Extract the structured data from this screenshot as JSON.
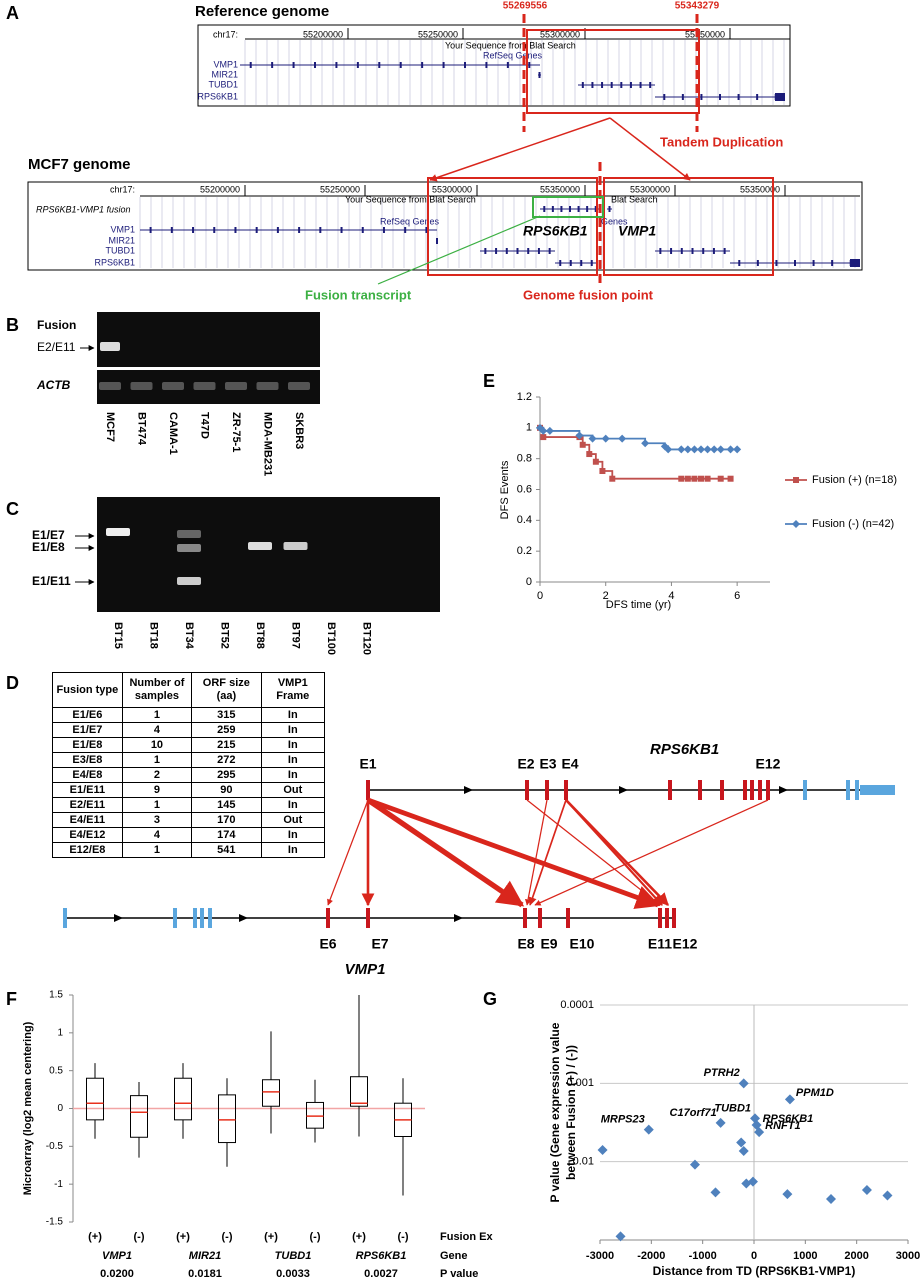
{
  "panel_labels": [
    "A",
    "B",
    "C",
    "D",
    "E",
    "F",
    "G"
  ],
  "genome": {
    "reference_title": "Reference genome",
    "breakpoints": [
      "55269556",
      "55343279"
    ],
    "reference_browser": {
      "chr": "chr17:",
      "ticks": [
        "55200000",
        "55250000",
        "55300000",
        "55350000"
      ],
      "blat": "Your Sequence from Blat Search",
      "refseq": "RefSeq Genes",
      "tracks": [
        "VMP1",
        "MIR21",
        "TUBD1",
        "RPS6KB1"
      ]
    },
    "duplication_label": "Tandem Duplication",
    "mcf7_title": "MCF7 genome",
    "mcf7_browser": {
      "chr": "chr17:",
      "ticks": [
        "55200000",
        "55250000",
        "55300000",
        "55350000",
        "55300000",
        "55350000"
      ],
      "blat": "Your Sequence from Blat Search",
      "blat2": "Blat Search",
      "refseq": "RefSeq Genes",
      "refseq2": "Genes",
      "fusion_track": "RPS6KB1-VMP1 fusion",
      "tracks": [
        "VMP1",
        "MIR21",
        "TUBD1",
        "RPS6KB1"
      ]
    },
    "gene_left": "RPS6KB1",
    "gene_right": "VMP1",
    "fusion_transcript": "Fusion transcript",
    "fusion_point": "Genome fusion point"
  },
  "gel_b": {
    "row_labels": [
      "Fusion",
      "E2/E11",
      "ACTB"
    ],
    "lanes": [
      "MCF7",
      "BT474",
      "CAMA-1",
      "T47D",
      "ZR-75-1",
      "MDA-MB231",
      "SKBR3"
    ]
  },
  "gel_c": {
    "row_labels": [
      "E1/E7",
      "E1/E8",
      "E1/E11"
    ],
    "lanes": [
      "BT15",
      "BT18",
      "BT34",
      "BT52",
      "BT88",
      "BT97",
      "BT100",
      "BT120"
    ]
  },
  "table": {
    "header": [
      "Fusion type",
      "Number of samples",
      "ORF size (aa)",
      "VMP1 Frame"
    ],
    "rows": [
      [
        "E1/E6",
        1,
        315,
        "In"
      ],
      [
        "E1/E7",
        4,
        259,
        "In"
      ],
      [
        "E1/E8",
        10,
        215,
        "In"
      ],
      [
        "E3/E8",
        1,
        272,
        "In"
      ],
      [
        "E4/E8",
        2,
        295,
        "In"
      ],
      [
        "E1/E11",
        9,
        90,
        "Out"
      ],
      [
        "E2/E11",
        1,
        145,
        "In"
      ],
      [
        "E4/E11",
        3,
        170,
        "Out"
      ],
      [
        "E4/E12",
        4,
        174,
        "In"
      ],
      [
        "E12/E8",
        1,
        541,
        "In"
      ]
    ]
  },
  "fusion_diagram": {
    "top_gene": "RPS6KB1",
    "bottom_gene": "VMP1",
    "top_exons": [
      "E1",
      "E2",
      "E3",
      "E4",
      "E12"
    ],
    "bottom_exons": [
      "E6",
      "E7",
      "E8",
      "E9",
      "E10",
      "E11",
      "E12"
    ]
  },
  "chart_data": [
    {
      "type": "line",
      "step": true,
      "xlabel": "DFS time (yr)",
      "ylabel": "DFS Events",
      "xlim": [
        0,
        7
      ],
      "xticks": [
        0,
        2,
        4,
        6
      ],
      "ylim": [
        0,
        1.2
      ],
      "yticks": [
        0,
        0.2,
        0.4,
        0.6,
        0.8,
        1,
        1.2
      ],
      "legend": "right",
      "series": [
        {
          "name": "Fusion (+) (n=18)",
          "color": "#c0504d",
          "marker": "square",
          "x": [
            0,
            0.1,
            1.2,
            1.3,
            1.5,
            1.7,
            1.9,
            2.2,
            4.3,
            4.5,
            4.7,
            4.9,
            5.1,
            5.5,
            5.8
          ],
          "values": [
            1,
            0.94,
            0.94,
            0.89,
            0.83,
            0.78,
            0.72,
            0.67,
            0.67,
            0.67,
            0.67,
            0.67,
            0.67,
            0.67,
            0.67
          ]
        },
        {
          "name": "Fusion (-) (n=42)",
          "color": "#4f81bd",
          "marker": "diamond",
          "x": [
            0,
            0.1,
            0.3,
            1.2,
            1.6,
            2.0,
            2.5,
            3.2,
            3.8,
            3.9,
            4.3,
            4.5,
            4.7,
            4.9,
            5.1,
            5.3,
            5.5,
            5.8,
            6.0
          ],
          "values": [
            1,
            0.98,
            0.98,
            0.95,
            0.93,
            0.93,
            0.93,
            0.9,
            0.88,
            0.86,
            0.86,
            0.86,
            0.86,
            0.86,
            0.86,
            0.86,
            0.86,
            0.86,
            0.86
          ]
        }
      ]
    },
    {
      "type": "box",
      "ylabel": "Microarray (log2 mean centering)",
      "ylim": [
        -1.5,
        1.5
      ],
      "yticks": [
        -1.5,
        -1,
        -0.5,
        0,
        0.5,
        1,
        1.5
      ],
      "categories": [
        "(+)",
        "(-)",
        "(+)",
        "(-)",
        "(+)",
        "(-)",
        "(+)",
        "(-)"
      ],
      "row_labels": [
        "Fusion Ex",
        "Gene",
        "P value"
      ],
      "genes": [
        "VMP1",
        "MIR21",
        "TUBD1",
        "RPS6KB1"
      ],
      "p_values": [
        "0.0200",
        "0.0181",
        "0.0033",
        "0.0027"
      ],
      "box_color": "#000000",
      "median_color": "#e8301c",
      "zero_line_color": "#f2a5a5",
      "boxes": [
        {
          "low": -0.4,
          "q1": -0.15,
          "median": 0.07,
          "q3": 0.4,
          "high": 0.6
        },
        {
          "low": -0.65,
          "q1": -0.38,
          "median": -0.05,
          "q3": 0.17,
          "high": 0.35
        },
        {
          "low": -0.4,
          "q1": -0.15,
          "median": 0.07,
          "q3": 0.4,
          "high": 0.6
        },
        {
          "low": -0.77,
          "q1": -0.45,
          "median": -0.15,
          "q3": 0.18,
          "high": 0.4
        },
        {
          "low": -0.33,
          "q1": 0.03,
          "median": 0.22,
          "q3": 0.38,
          "high": 1.02
        },
        {
          "low": -0.45,
          "q1": -0.26,
          "median": -0.1,
          "q3": 0.08,
          "high": 0.38
        },
        {
          "low": -0.37,
          "q1": 0.03,
          "median": 0.07,
          "q3": 0.42,
          "high": 1.5
        },
        {
          "low": -1.15,
          "q1": -0.37,
          "median": -0.15,
          "q3": 0.07,
          "high": 0.4
        }
      ]
    },
    {
      "type": "scatter",
      "xlabel": "Distance from TD (RPS6KB1-VMP1)",
      "ylabel": [
        "P value (Gene expression value",
        "between Fusion (+) / (-))"
      ],
      "xlim": [
        -3000,
        3000
      ],
      "xticks": [
        -3000,
        -2000,
        -1000,
        0,
        1000,
        2000,
        3000
      ],
      "ylim": [
        0.0001,
        0.1
      ],
      "yticks": [
        0.0001,
        0.001,
        0.01
      ],
      "log_y": true,
      "y_reversed": true,
      "grid": true,
      "color": "#4f81bd",
      "x": [
        -2950,
        -2600,
        -2050,
        -1150,
        -750,
        -650,
        -250,
        -200,
        -200,
        -150,
        -20,
        20,
        50,
        100,
        700,
        650,
        1500,
        2200,
        2600
      ],
      "values": [
        0.0071,
        0.09,
        0.0039,
        0.0109,
        0.0247,
        0.0032,
        0.0057,
        0.0073,
        0.001,
        0.019,
        0.018,
        0.0028,
        0.0034,
        0.0042,
        0.0016,
        0.026,
        0.03,
        0.023,
        0.027
      ],
      "point_labels": [
        null,
        null,
        "MRPS23",
        null,
        null,
        "C17orf71",
        null,
        null,
        "PTRH2",
        null,
        null,
        "TUBD1",
        "RPS6KB1",
        "RNFT1",
        "PPM1D",
        null,
        null,
        null,
        null
      ]
    }
  ]
}
